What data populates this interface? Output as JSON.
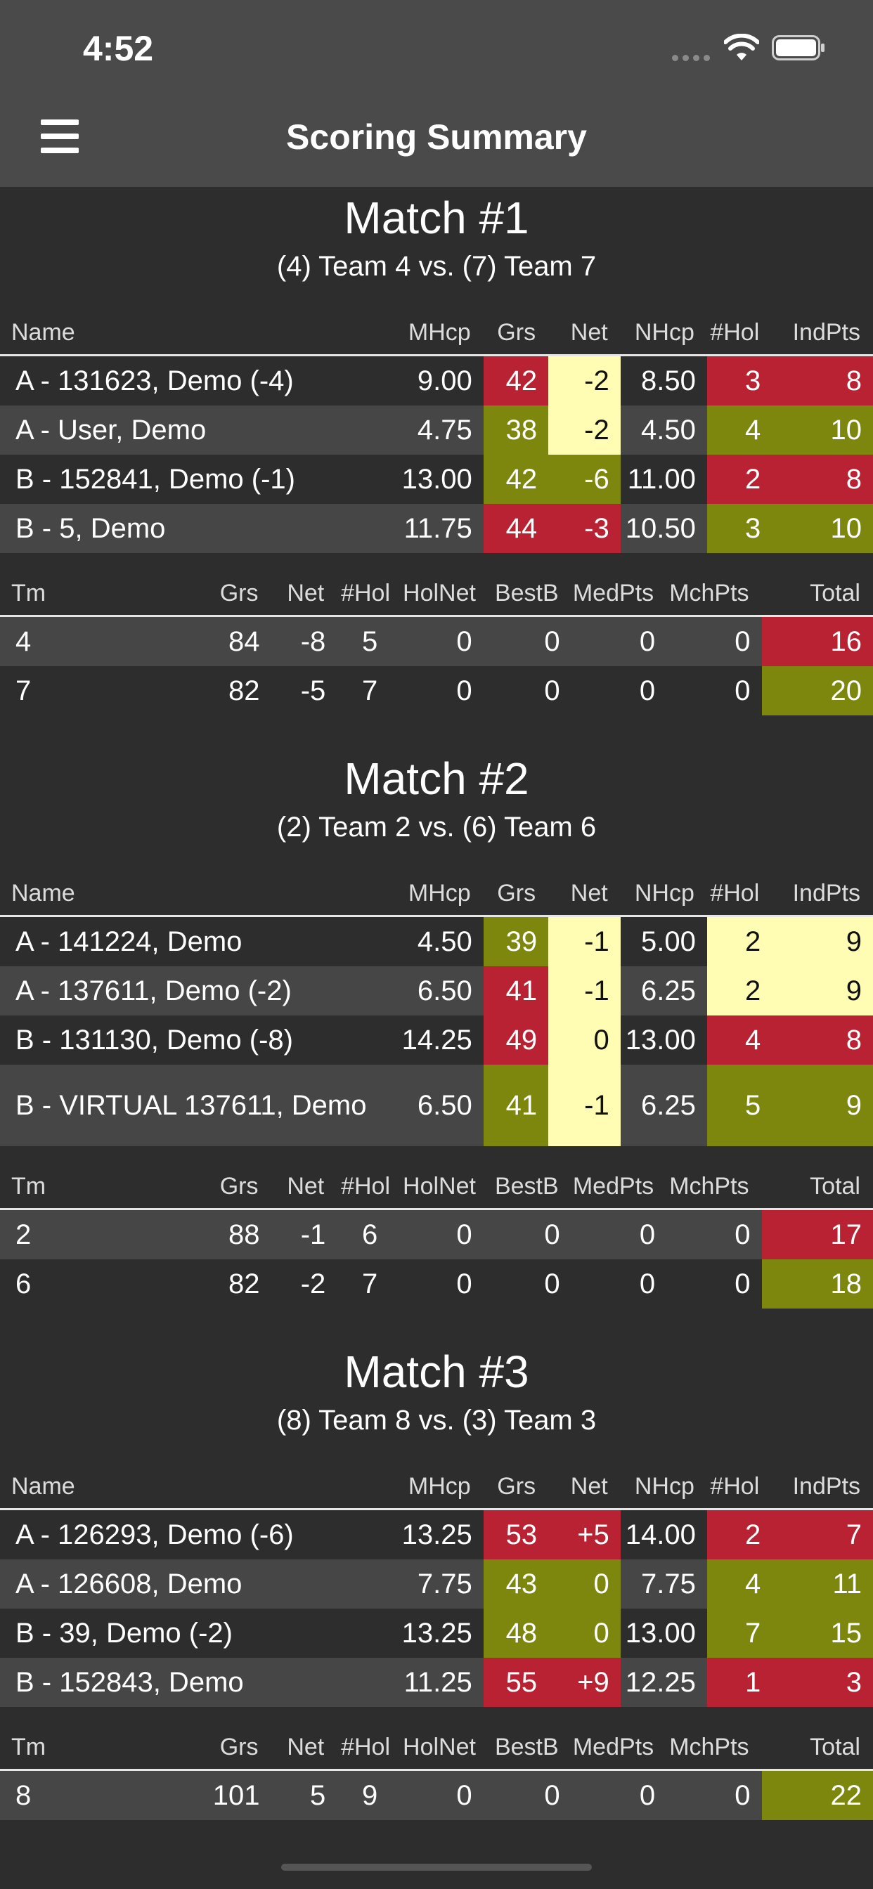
{
  "status_bar": {
    "time": "4:52"
  },
  "header": {
    "title": "Scoring Summary"
  },
  "player_headers": [
    "Name",
    "MHcp",
    "Grs",
    "Net",
    "NHcp",
    "#Hol",
    "IndPts"
  ],
  "team_headers": [
    "Tm",
    "Grs",
    "Net",
    "#Hol",
    "HolNet",
    "BestB",
    "MedPts",
    "MchPts",
    "Total"
  ],
  "colors": {
    "red": "#b92232",
    "olive": "#7e870d",
    "yellow": "#fffdb3",
    "header": "#4a4a4a",
    "background": "#2d2d2d"
  },
  "matches": [
    {
      "title": "Match #1",
      "subtitle": "(4) Team 4 vs. (7) Team 7",
      "players": [
        {
          "name": "A - 131623, Demo (-4)",
          "mhcp": "9.00",
          "grs": "42",
          "grs_color": "red",
          "net": "-2",
          "net_color": "yellow",
          "nhcp": "8.50",
          "hol": "3",
          "hol_color": "red",
          "indpts": "8",
          "indpts_color": "red"
        },
        {
          "name": "A - User, Demo",
          "mhcp": "4.75",
          "grs": "38",
          "grs_color": "olive",
          "net": "-2",
          "net_color": "yellow",
          "nhcp": "4.50",
          "hol": "4",
          "hol_color": "olive",
          "indpts": "10",
          "indpts_color": "olive"
        },
        {
          "name": "B - 152841, Demo (-1)",
          "mhcp": "13.00",
          "grs": "42",
          "grs_color": "olive",
          "net": "-6",
          "net_color": "olive",
          "nhcp": "11.00",
          "hol": "2",
          "hol_color": "red",
          "indpts": "8",
          "indpts_color": "red"
        },
        {
          "name": "B - 5, Demo",
          "mhcp": "11.75",
          "grs": "44",
          "grs_color": "red",
          "net": "-3",
          "net_color": "red",
          "nhcp": "10.50",
          "hol": "3",
          "hol_color": "olive",
          "indpts": "10",
          "indpts_color": "olive"
        }
      ],
      "teams": [
        {
          "tm": "4",
          "grs": "84",
          "net": "-8",
          "hol": "5",
          "holnet": "0",
          "bestb": "0",
          "medpts": "0",
          "mchpts": "0",
          "total": "16",
          "total_color": "red"
        },
        {
          "tm": "7",
          "grs": "82",
          "net": "-5",
          "hol": "7",
          "holnet": "0",
          "bestb": "0",
          "medpts": "0",
          "mchpts": "0",
          "total": "20",
          "total_color": "olive"
        }
      ]
    },
    {
      "title": "Match #2",
      "subtitle": "(2) Team 2 vs. (6) Team 6",
      "players": [
        {
          "name": "A - 141224, Demo",
          "mhcp": "4.50",
          "grs": "39",
          "grs_color": "olive",
          "net": "-1",
          "net_color": "yellow",
          "nhcp": "5.00",
          "hol": "2",
          "hol_color": "yellow",
          "indpts": "9",
          "indpts_color": "yellow"
        },
        {
          "name": "A - 137611, Demo (-2)",
          "mhcp": "6.50",
          "grs": "41",
          "grs_color": "red",
          "net": "-1",
          "net_color": "yellow",
          "nhcp": "6.25",
          "hol": "2",
          "hol_color": "yellow",
          "indpts": "9",
          "indpts_color": "yellow"
        },
        {
          "name": "B - 131130, Demo (-8)",
          "mhcp": "14.25",
          "grs": "49",
          "grs_color": "red",
          "net": "0",
          "net_color": "yellow",
          "nhcp": "13.00",
          "hol": "4",
          "hol_color": "red",
          "indpts": "8",
          "indpts_color": "red"
        },
        {
          "name": "B - VIRTUAL 137611, Demo",
          "mhcp": "6.50",
          "grs": "41",
          "grs_color": "olive",
          "net": "-1",
          "net_color": "yellow",
          "nhcp": "6.25",
          "hol": "5",
          "hol_color": "olive",
          "indpts": "9",
          "indpts_color": "olive",
          "tall": true
        }
      ],
      "teams": [
        {
          "tm": "2",
          "grs": "88",
          "net": "-1",
          "hol": "6",
          "holnet": "0",
          "bestb": "0",
          "medpts": "0",
          "mchpts": "0",
          "total": "17",
          "total_color": "red"
        },
        {
          "tm": "6",
          "grs": "82",
          "net": "-2",
          "hol": "7",
          "holnet": "0",
          "bestb": "0",
          "medpts": "0",
          "mchpts": "0",
          "total": "18",
          "total_color": "olive"
        }
      ]
    },
    {
      "title": "Match #3",
      "subtitle": "(8) Team 8 vs. (3) Team 3",
      "players": [
        {
          "name": "A - 126293, Demo (-6)",
          "mhcp": "13.25",
          "grs": "53",
          "grs_color": "red",
          "net": "+5",
          "net_color": "red",
          "nhcp": "14.00",
          "hol": "2",
          "hol_color": "red",
          "indpts": "7",
          "indpts_color": "red"
        },
        {
          "name": "A - 126608, Demo",
          "mhcp": "7.75",
          "grs": "43",
          "grs_color": "olive",
          "net": "0",
          "net_color": "olive",
          "nhcp": "7.75",
          "hol": "4",
          "hol_color": "olive",
          "indpts": "11",
          "indpts_color": "olive"
        },
        {
          "name": "B - 39, Demo (-2)",
          "mhcp": "13.25",
          "grs": "48",
          "grs_color": "olive",
          "net": "0",
          "net_color": "olive",
          "nhcp": "13.00",
          "hol": "7",
          "hol_color": "olive",
          "indpts": "15",
          "indpts_color": "olive"
        },
        {
          "name": "B - 152843, Demo",
          "mhcp": "11.25",
          "grs": "55",
          "grs_color": "red",
          "net": "+9",
          "net_color": "red",
          "nhcp": "12.25",
          "hol": "1",
          "hol_color": "red",
          "indpts": "3",
          "indpts_color": "red"
        }
      ],
      "teams": [
        {
          "tm": "8",
          "grs": "101",
          "net": "5",
          "hol": "9",
          "holnet": "0",
          "bestb": "0",
          "medpts": "0",
          "mchpts": "0",
          "total": "22",
          "total_color": "olive"
        }
      ]
    }
  ]
}
